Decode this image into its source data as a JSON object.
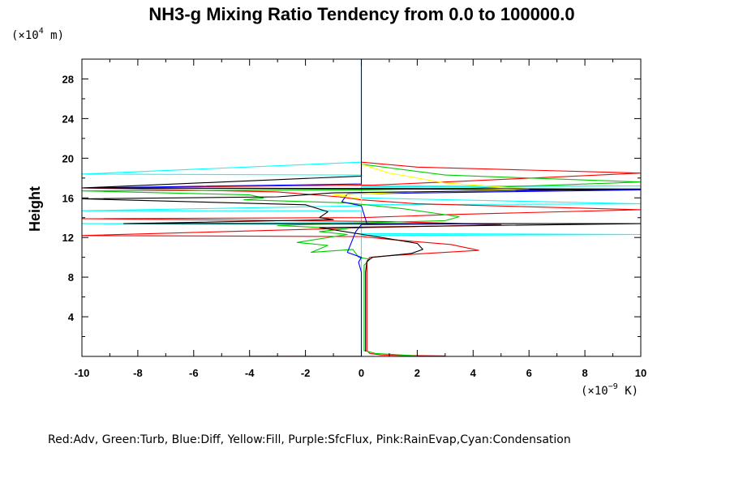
{
  "chart_data": {
    "type": "line",
    "title": "NH3-g Mixing Ratio Tendency from 0.0 to 100000.0",
    "ylabel": "Height",
    "y_unit_prefix": "(×10",
    "y_unit_exp": "4",
    "y_unit_suffix": " m)",
    "x_unit_prefix": "(×10",
    "x_unit_exp": "−9",
    "x_unit_suffix": " K)",
    "legend_text": "Red:Adv, Green:Turb, Blue:Diff, Yellow:Fill, Purple:SfcFlux, Pink:RainEvap,Cyan:Condensation",
    "xlim": [
      -10,
      10
    ],
    "ylim": [
      0,
      30
    ],
    "xticks": [
      -10,
      -8,
      -6,
      -4,
      -2,
      0,
      2,
      4,
      6,
      8,
      10
    ],
    "yticks": [
      4,
      8,
      12,
      16,
      20,
      24,
      28
    ],
    "grid": false,
    "colors": {
      "Adv": "#ff0000",
      "Turb": "#00cc00",
      "Diff": "#0000ff",
      "Fill": "#ffff00",
      "SfcFlux": "#a020f0",
      "RainEvap": "#ff69b4",
      "Condensation": "#00ffff",
      "Total": "#000000"
    },
    "series": [
      {
        "key": "Condensation",
        "points": [
          [
            0,
            30
          ],
          [
            0,
            19.6
          ],
          [
            -10,
            18.4
          ],
          [
            0,
            18.3
          ],
          [
            0,
            17.2
          ],
          [
            10,
            17.2
          ],
          [
            0,
            17.1
          ],
          [
            0,
            16.0
          ],
          [
            10,
            15.4
          ],
          [
            0,
            15.3
          ],
          [
            0,
            15.2
          ],
          [
            -10,
            14.7
          ],
          [
            0,
            14.7
          ],
          [
            0,
            13.5
          ],
          [
            -10,
            13.4
          ],
          [
            0,
            13.3
          ],
          [
            0,
            12.4
          ],
          [
            10,
            12.3
          ],
          [
            0,
            12.2
          ],
          [
            0,
            0
          ]
        ]
      },
      {
        "key": "Adv",
        "points": [
          [
            0,
            19.6
          ],
          [
            2,
            19.1
          ],
          [
            6,
            18.8
          ],
          [
            10,
            18.5
          ],
          [
            3,
            17.6
          ],
          [
            0.5,
            17.3
          ],
          [
            -10,
            17.0
          ],
          [
            -3,
            16.6
          ],
          [
            -0.8,
            16.1
          ],
          [
            0,
            15.8
          ],
          [
            2,
            15.4
          ],
          [
            10,
            14.8
          ],
          [
            3,
            14.3
          ],
          [
            0,
            14.0
          ],
          [
            -10,
            13.9
          ],
          [
            1,
            13.6
          ],
          [
            5,
            13.3
          ],
          [
            0.3,
            13.0
          ],
          [
            -10,
            12.2
          ],
          [
            0,
            12.1
          ],
          [
            1,
            11.8
          ],
          [
            3.2,
            11.3
          ],
          [
            4.2,
            10.7
          ],
          [
            1.2,
            10.2
          ],
          [
            0.3,
            10.0
          ],
          [
            0.2,
            9.6
          ],
          [
            0.2,
            8.5
          ],
          [
            0.2,
            0.6
          ],
          [
            0.3,
            0.3
          ],
          [
            0.7,
            0.15
          ],
          [
            1.5,
            0.1
          ],
          [
            3,
            0.05
          ]
        ]
      },
      {
        "key": "Turb",
        "points": [
          [
            0,
            19.4
          ],
          [
            3,
            18.3
          ],
          [
            10,
            17.6
          ],
          [
            4,
            17.0
          ],
          [
            0,
            16.8
          ],
          [
            -10,
            16.7
          ],
          [
            -4,
            16.3
          ],
          [
            -3.5,
            16.0
          ],
          [
            -4.2,
            15.8
          ],
          [
            -0.5,
            15.5
          ],
          [
            1.5,
            14.9
          ],
          [
            3.5,
            14.1
          ],
          [
            3,
            13.7
          ],
          [
            -1,
            13.4
          ],
          [
            -3,
            13.2
          ],
          [
            -0.5,
            12.9
          ],
          [
            -1.5,
            12.6
          ],
          [
            -0.5,
            12.3
          ],
          [
            -2.3,
            11.5
          ],
          [
            -1.2,
            11.2
          ],
          [
            -1.8,
            10.5
          ],
          [
            -0.3,
            10.8
          ],
          [
            -0.1,
            10.0
          ],
          [
            0.3,
            9.8
          ],
          [
            0.1,
            9.2
          ],
          [
            0.1,
            0.6
          ],
          [
            0.5,
            0.3
          ],
          [
            2,
            0.05
          ]
        ]
      },
      {
        "key": "Diff",
        "points": [
          [
            0,
            30
          ],
          [
            0,
            17.4
          ],
          [
            -10,
            17.0
          ],
          [
            10,
            16.8
          ],
          [
            -0.5,
            16.4
          ],
          [
            -0.7,
            15.6
          ],
          [
            0,
            15.2
          ],
          [
            0.2,
            13.4
          ],
          [
            5,
            13.4
          ],
          [
            0,
            13.3
          ],
          [
            -0.2,
            12.6
          ],
          [
            -0.5,
            10.5
          ],
          [
            0,
            10.0
          ],
          [
            -0.1,
            9.5
          ],
          [
            0,
            8.5
          ],
          [
            0,
            0
          ]
        ]
      },
      {
        "key": "Fill",
        "points": [
          [
            0,
            19.4
          ],
          [
            1,
            18.5
          ],
          [
            3,
            17.5
          ],
          [
            6,
            16.9
          ],
          [
            2,
            16.6
          ],
          [
            -1,
            16.3
          ],
          [
            0,
            15.9
          ],
          [
            0,
            15.4
          ]
        ]
      },
      {
        "key": "SfcFlux",
        "points": [
          [
            0,
            0.02
          ],
          [
            -4,
            0.02
          ]
        ]
      },
      {
        "key": "RainEvap",
        "points": [
          [
            -2,
            0.05
          ],
          [
            -4,
            0.03
          ]
        ]
      },
      {
        "key": "Total",
        "points": [
          [
            0,
            19.5
          ],
          [
            0,
            18.2
          ],
          [
            -10,
            17.0
          ],
          [
            10,
            16.9
          ],
          [
            -1,
            16.5
          ],
          [
            -3,
            16.1
          ],
          [
            -10,
            15.9
          ],
          [
            -2,
            15.3
          ],
          [
            -1.2,
            14.6
          ],
          [
            -1.5,
            14.0
          ],
          [
            -1,
            13.8
          ],
          [
            -8.5,
            13.4
          ],
          [
            10,
            13.4
          ],
          [
            -1.5,
            13.0
          ],
          [
            0.3,
            12.2
          ],
          [
            2,
            11.4
          ],
          [
            2.2,
            10.8
          ],
          [
            1.8,
            10.4
          ],
          [
            0.4,
            10.0
          ],
          [
            0.2,
            9.6
          ],
          [
            0.15,
            8.5
          ],
          [
            0.15,
            0.5
          ]
        ]
      }
    ]
  }
}
